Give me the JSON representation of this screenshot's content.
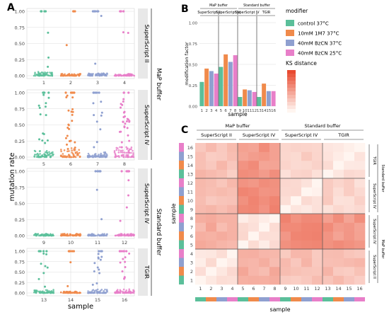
{
  "panels": {
    "a": "A",
    "b": "B",
    "c": "C"
  },
  "colors": {
    "control": "#5bbf9a",
    "m1m7": "#f08a4b",
    "bzcn37": "#8fa0d0",
    "bzcn25": "#e87fc9",
    "strip_fill": "#e8e8e8",
    "grid": "#dedede",
    "heat_low": "#fff5f0",
    "heat_high": "#e84a30"
  },
  "chart_data": [
    {
      "type": "scatter",
      "panel": "A",
      "xlabel": "sample",
      "ylabel": "mutation rate",
      "ylim": [
        0,
        1
      ],
      "yticks": [
        "0.00",
        "0.25",
        "0.50",
        "0.75",
        "1.00"
      ],
      "strip_outer_top": "MaP buffer",
      "strip_outer_bottom": "Standard buffer",
      "rows": [
        {
          "strip": "SuperScript II",
          "samples": [
            "1",
            "2",
            "3",
            "4"
          ],
          "high_points": [
            3,
            1,
            2,
            2
          ],
          "spread": [
            0.06,
            0.03,
            0.04,
            0.03
          ]
        },
        {
          "strip": "SuperScript IV",
          "samples": [
            "5",
            "6",
            "7",
            "8"
          ],
          "high_points": [
            14,
            22,
            9,
            26
          ],
          "spread": [
            0.1,
            0.14,
            0.08,
            0.16
          ]
        },
        {
          "strip": "SuperScript IV",
          "samples": [
            "9",
            "10",
            "11",
            "12"
          ],
          "high_points": [
            0,
            0,
            2,
            4
          ],
          "spread": [
            0.03,
            0.03,
            0.03,
            0.03
          ]
        },
        {
          "strip": "TGIR",
          "samples": [
            "13",
            "14",
            "15",
            "16"
          ],
          "high_points": [
            8,
            2,
            12,
            10
          ],
          "spread": [
            0.08,
            0.04,
            0.09,
            0.09
          ]
        }
      ]
    },
    {
      "type": "bar",
      "panel": "B",
      "xlabel": "sample",
      "ylabel": "modification factor",
      "ylim": [
        0,
        1
      ],
      "yticks": [
        "0.00",
        "0.25",
        "0.50",
        "0.75",
        "1.00"
      ],
      "categories": [
        "1",
        "2",
        "3",
        "4",
        "5",
        "6",
        "7",
        "8",
        "9",
        "10",
        "11",
        "12",
        "13",
        "14",
        "15",
        "16"
      ],
      "values": [
        0.29,
        0.45,
        0.42,
        0.39,
        0.47,
        0.62,
        0.53,
        0.61,
        0.11,
        0.2,
        0.19,
        0.17,
        0.11,
        0.27,
        0.18,
        0.18
      ],
      "series_index": [
        0,
        1,
        2,
        3,
        0,
        1,
        2,
        3,
        0,
        1,
        2,
        3,
        0,
        1,
        2,
        3
      ],
      "groups_outer": [
        {
          "label": "MaP buffer",
          "span": [
            1,
            8
          ]
        },
        {
          "label": "Standard buffer",
          "span": [
            9,
            16
          ]
        }
      ],
      "groups_inner": [
        {
          "label": "SuperScript II",
          "span": [
            1,
            4
          ]
        },
        {
          "label": "SuperScript IV",
          "span": [
            5,
            8
          ]
        },
        {
          "label": "SuperScript IV",
          "span": [
            9,
            12
          ]
        },
        {
          "label": "TGIR",
          "span": [
            13,
            16
          ]
        }
      ]
    },
    {
      "type": "heatmap",
      "panel": "C",
      "xlabel": "sample",
      "ylabel": "sample",
      "labels": [
        "1",
        "2",
        "3",
        "4",
        "5",
        "6",
        "7",
        "8",
        "9",
        "10",
        "11",
        "12",
        "13",
        "14",
        "15",
        "16"
      ],
      "groups_outer": [
        {
          "label": "MaP buffer",
          "span": [
            1,
            8
          ]
        },
        {
          "label": "Standard buffer",
          "span": [
            9,
            16
          ]
        }
      ],
      "groups_inner": [
        {
          "label": "SuperScript II",
          "span": [
            1,
            4
          ]
        },
        {
          "label": "SuperScript IV",
          "span": [
            5,
            8
          ]
        },
        {
          "label": "SuperScript IV",
          "span": [
            9,
            12
          ]
        },
        {
          "label": "TGIR",
          "span": [
            13,
            16
          ]
        }
      ],
      "group_scores": [
        [
          0.12,
          0.4,
          0.3,
          0.3
        ],
        [
          0.4,
          0.1,
          0.6,
          0.55
        ],
        [
          0.3,
          0.6,
          0.1,
          0.18
        ],
        [
          0.3,
          0.55,
          0.18,
          0.1
        ]
      ]
    }
  ],
  "legend": {
    "title": "modifier",
    "items": [
      {
        "label": "control 37°C",
        "color_key": "control"
      },
      {
        "label": "10mM 1M7 37°C",
        "color_key": "m1m7"
      },
      {
        "label": "40mM BzCN 37°C",
        "color_key": "bzcn37"
      },
      {
        "label": "40mM BzCN 25°C",
        "color_key": "bzcn25"
      }
    ],
    "ks_title": "KS distance"
  }
}
